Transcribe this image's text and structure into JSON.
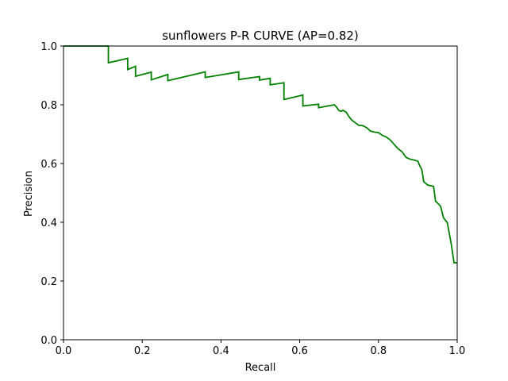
{
  "chart_data": {
    "type": "line",
    "title": "sunflowers P-R CURVE (AP=0.82)",
    "xlabel": "Recall",
    "ylabel": "Precision",
    "xlim": [
      0.0,
      1.0
    ],
    "ylim": [
      0.0,
      1.0
    ],
    "xticks": [
      "0.0",
      "0.2",
      "0.4",
      "0.6",
      "0.8",
      "1.0"
    ],
    "yticks": [
      "0.0",
      "0.2",
      "0.4",
      "0.6",
      "0.8",
      "1.0"
    ],
    "grid": false,
    "line_color": "#008000",
    "series": [
      {
        "x": [
          0.0,
          0.114,
          0.114,
          0.163,
          0.163,
          0.183,
          0.183,
          0.223,
          0.223,
          0.265,
          0.265,
          0.36,
          0.36,
          0.445,
          0.445,
          0.498,
          0.498,
          0.525,
          0.525,
          0.56,
          0.56,
          0.608,
          0.608,
          0.648,
          0.648,
          0.688,
          0.693,
          0.697,
          0.7,
          0.705,
          0.71,
          0.718,
          0.725,
          0.732,
          0.74,
          0.75,
          0.76,
          0.77,
          0.78,
          0.79,
          0.8,
          0.81,
          0.82,
          0.83,
          0.84,
          0.85,
          0.86,
          0.87,
          0.88,
          0.89,
          0.9,
          0.905,
          0.91,
          0.915,
          0.925,
          0.94,
          0.945,
          0.952,
          0.958,
          0.965,
          0.975,
          0.985,
          0.992,
          1.0
        ],
        "y": [
          1.0,
          1.0,
          0.943,
          0.958,
          0.92,
          0.931,
          0.897,
          0.911,
          0.885,
          0.903,
          0.882,
          0.912,
          0.893,
          0.912,
          0.886,
          0.896,
          0.884,
          0.89,
          0.868,
          0.875,
          0.818,
          0.833,
          0.796,
          0.802,
          0.79,
          0.8,
          0.793,
          0.785,
          0.78,
          0.778,
          0.781,
          0.775,
          0.76,
          0.748,
          0.74,
          0.73,
          0.729,
          0.722,
          0.71,
          0.707,
          0.705,
          0.696,
          0.69,
          0.68,
          0.665,
          0.65,
          0.64,
          0.621,
          0.615,
          0.612,
          0.608,
          0.592,
          0.58,
          0.538,
          0.527,
          0.522,
          0.472,
          0.463,
          0.454,
          0.416,
          0.398,
          0.325,
          0.262,
          0.262
        ]
      }
    ]
  }
}
